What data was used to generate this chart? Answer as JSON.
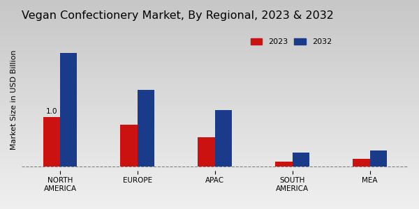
{
  "title": "Vegan Confectionery Market, By Regional, 2023 & 2032",
  "ylabel": "Market Size in USD Billion",
  "categories": [
    "NORTH\nAMERICA",
    "EUROPE",
    "APAC",
    "SOUTH\nAMERICA",
    "MEA"
  ],
  "values_2023": [
    1.0,
    0.85,
    0.6,
    0.1,
    0.15
  ],
  "values_2032": [
    2.3,
    1.55,
    1.15,
    0.28,
    0.32
  ],
  "color_2023": "#cc1111",
  "color_2032": "#1a3a8a",
  "annotation_value": "1.0",
  "background_top": "#f0f0f0",
  "background_bottom": "#c8c8c8",
  "bar_width": 0.22,
  "legend_labels": [
    "2023",
    "2032"
  ],
  "title_fontsize": 11.5,
  "ylabel_fontsize": 8,
  "tick_fontsize": 7.5,
  "legend_fontsize": 8,
  "bottom_bar_color": "#cc1111",
  "ylim_max": 2.8
}
